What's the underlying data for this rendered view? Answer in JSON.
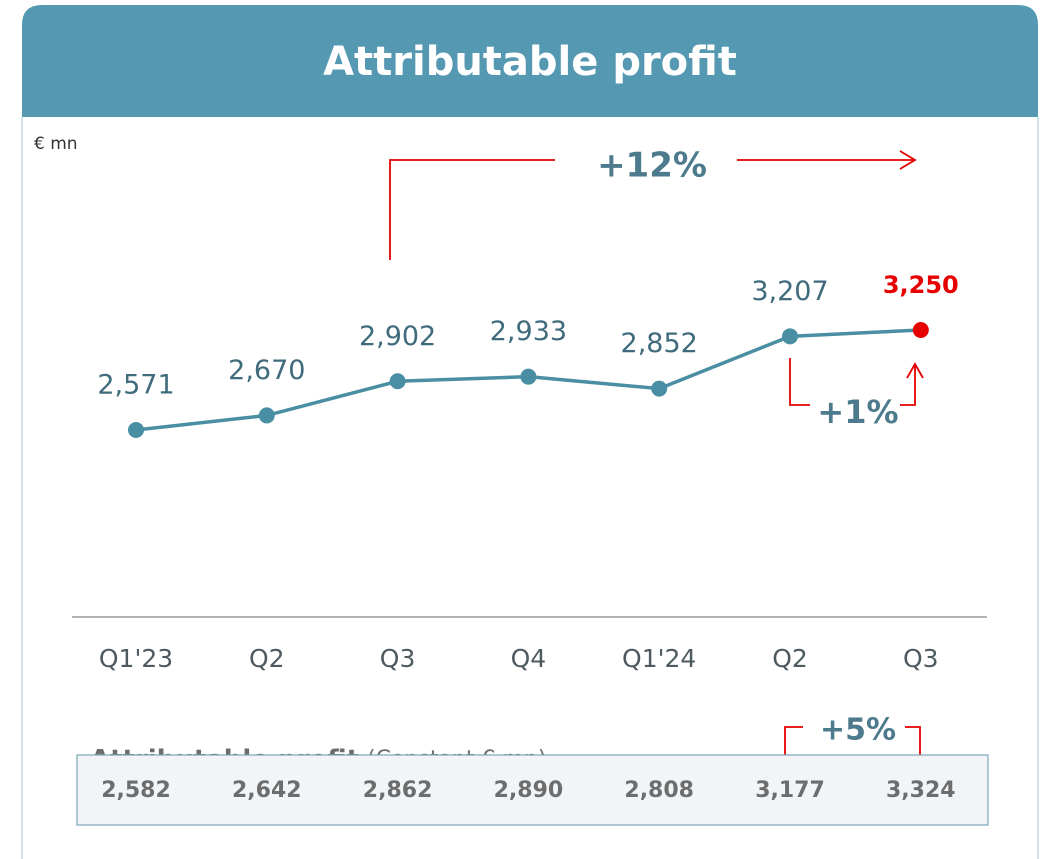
{
  "chart_data": {
    "type": "line",
    "title": "Attributable profit",
    "unit": "€ mn",
    "categories": [
      "Q1'23",
      "Q2",
      "Q3",
      "Q4",
      "Q1'24",
      "Q2",
      "Q3"
    ],
    "values": [
      2571,
      2670,
      2902,
      2933,
      2852,
      3207,
      3250
    ],
    "value_labels": [
      "2,571",
      "2,670",
      "2,902",
      "2,933",
      "2,852",
      "3,207",
      "3,250"
    ],
    "color": "#4a8ea3",
    "highlight_color": "#e60000",
    "annotations": [
      "+12%",
      "+1%",
      "+5%"
    ],
    "table": {
      "title": "Attributable profit",
      "subtitle": "(Constant € mn)",
      "values": [
        "2,582",
        "2,642",
        "2,862",
        "2,890",
        "2,808",
        "3,177",
        "3,324"
      ]
    }
  }
}
